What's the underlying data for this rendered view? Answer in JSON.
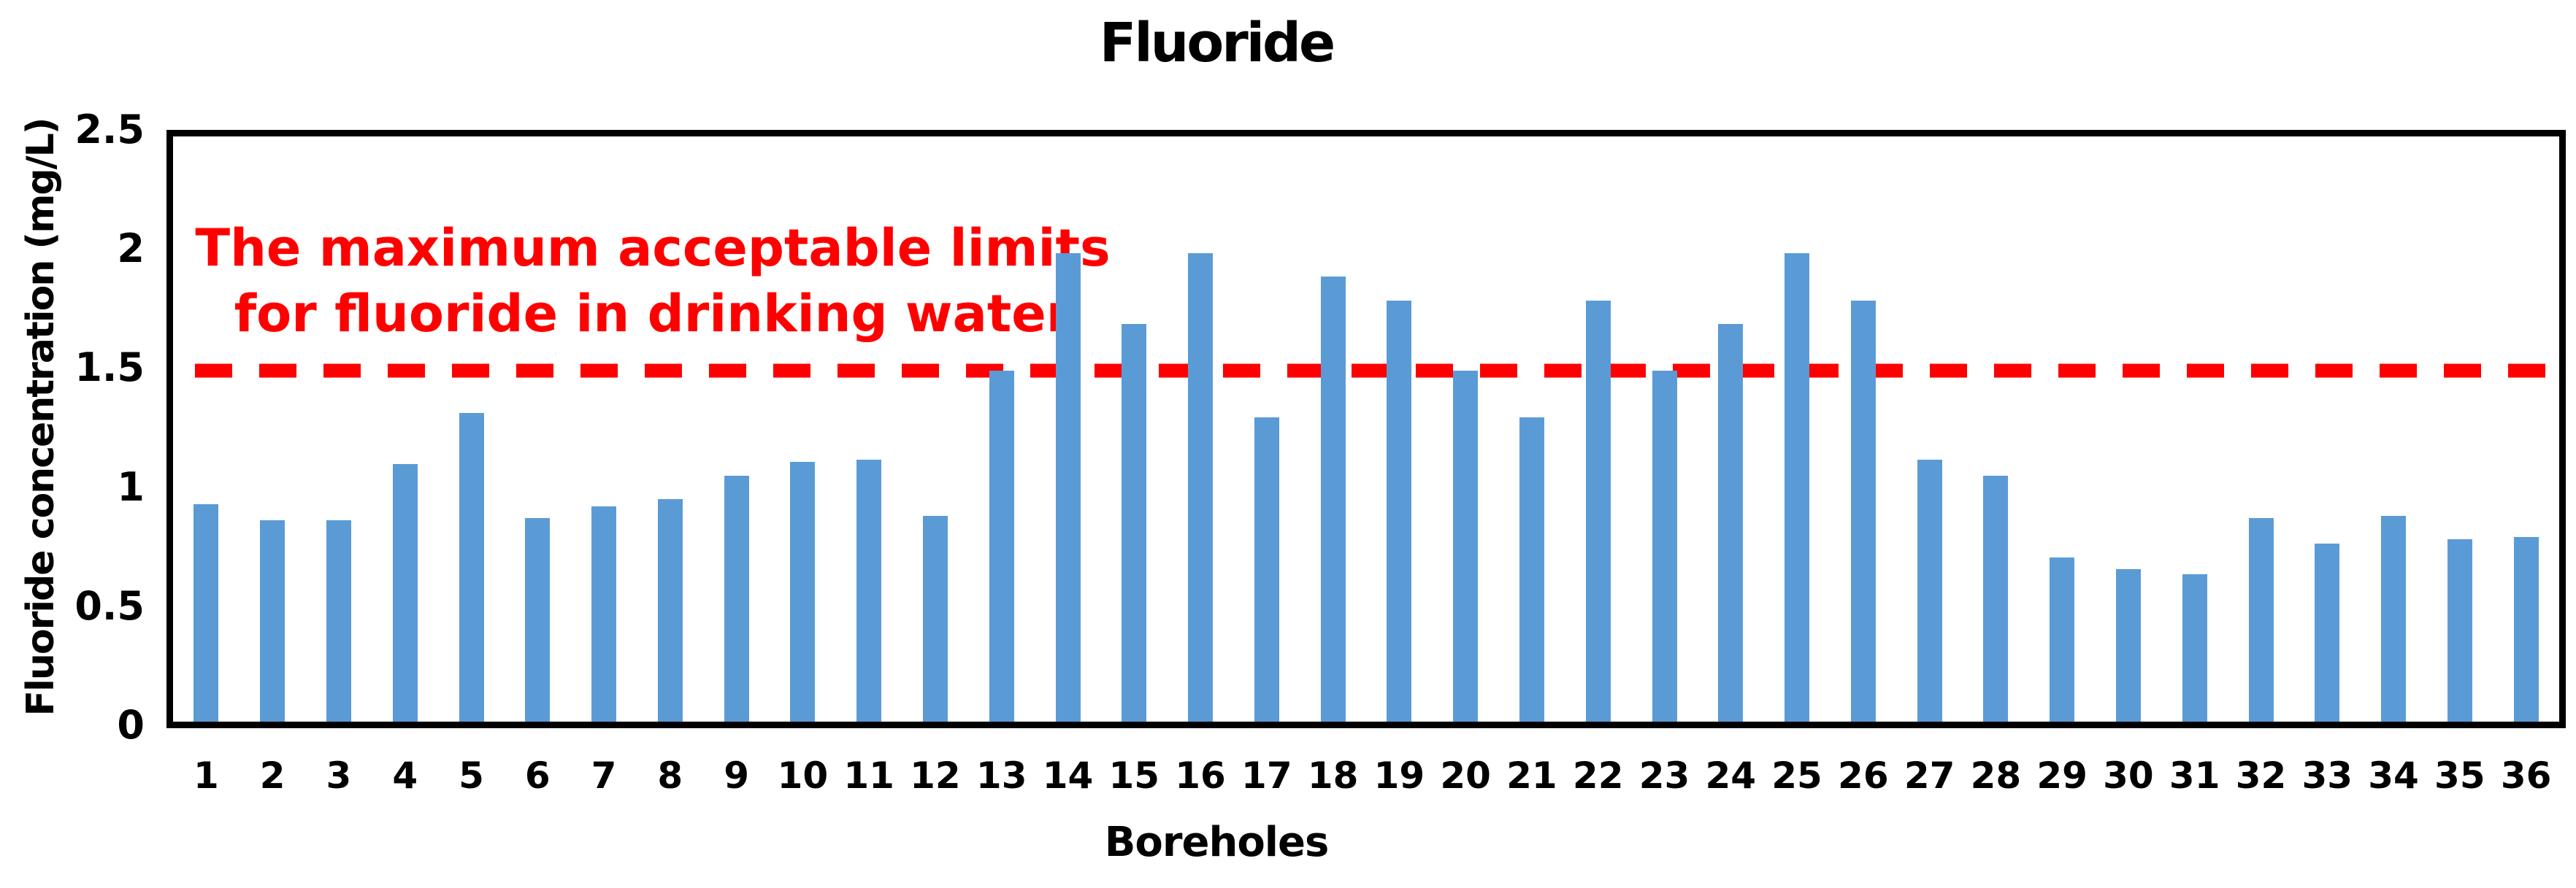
{
  "chart_data": {
    "type": "bar",
    "title": "Fluoride",
    "xlabel": "Boreholes",
    "ylabel": "Fluoride concentration (mg/L)",
    "categories": [
      "1",
      "2",
      "3",
      "4",
      "5",
      "6",
      "7",
      "8",
      "9",
      "10",
      "11",
      "12",
      "13",
      "14",
      "15",
      "16",
      "17",
      "18",
      "19",
      "20",
      "21",
      "22",
      "23",
      "24",
      "25",
      "26",
      "27",
      "28",
      "29",
      "30",
      "31",
      "32",
      "33",
      "34",
      "35",
      "36"
    ],
    "values": [
      0.93,
      0.86,
      0.86,
      1.1,
      1.32,
      0.87,
      0.92,
      0.95,
      1.05,
      1.11,
      1.12,
      0.88,
      1.5,
      2.0,
      1.7,
      2.0,
      1.3,
      1.9,
      1.8,
      1.5,
      1.3,
      1.8,
      1.5,
      1.7,
      2.0,
      1.8,
      1.12,
      1.05,
      0.7,
      0.65,
      0.63,
      0.87,
      0.76,
      0.88,
      0.78,
      0.79
    ],
    "ylim": [
      0,
      2.5
    ],
    "yticks": [
      0,
      0.5,
      1,
      1.5,
      2,
      2.5
    ],
    "ytick_labels": [
      "0",
      "0.5",
      "1",
      "1.5",
      "2",
      "2.5"
    ],
    "grid": false,
    "legend": "none",
    "bar_color": "#5B9BD5",
    "axis_color": "#000000",
    "threshold": {
      "value": 1.5,
      "color": "#FF0000",
      "style": "dashed",
      "label_line1": "The maximum acceptable limits",
      "label_line2": "for fluoride in drinking water"
    }
  }
}
